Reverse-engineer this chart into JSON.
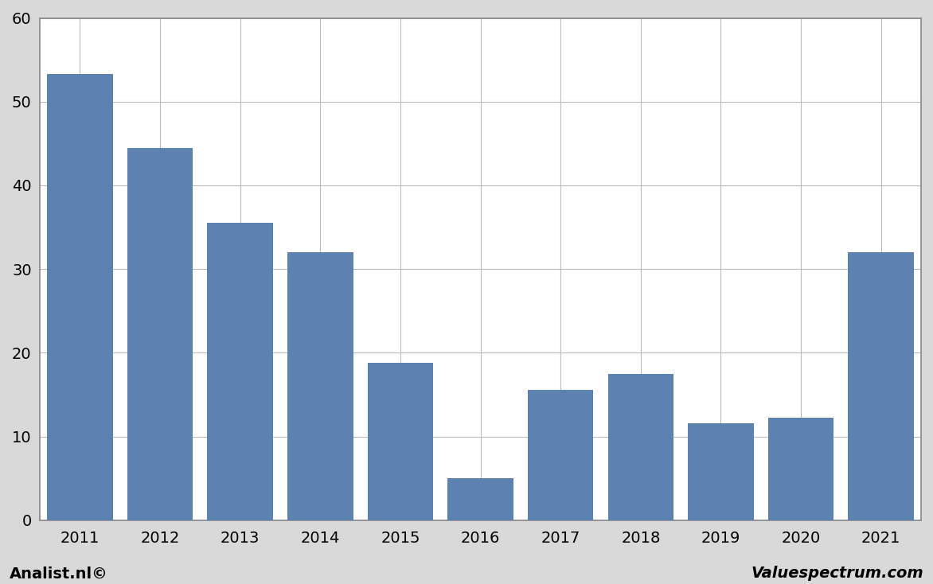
{
  "categories": [
    "2011",
    "2012",
    "2013",
    "2014",
    "2015",
    "2016",
    "2017",
    "2018",
    "2019",
    "2020",
    "2021"
  ],
  "values": [
    53.3,
    44.5,
    35.5,
    32.0,
    18.8,
    5.0,
    15.6,
    17.5,
    11.6,
    12.2,
    32.0
  ],
  "bar_color": "#5b82b0",
  "ylim": [
    0,
    60
  ],
  "yticks": [
    0,
    10,
    20,
    30,
    40,
    50,
    60
  ],
  "background_color": "#d9d9d9",
  "plot_background_color": "#ffffff",
  "grid_color": "#bbbbbb",
  "border_color": "#888888",
  "footer_left": "Analist.nl©",
  "footer_right": "Valuespectrum.com",
  "footer_fontsize": 14,
  "tick_fontsize": 14,
  "bar_width": 0.82
}
